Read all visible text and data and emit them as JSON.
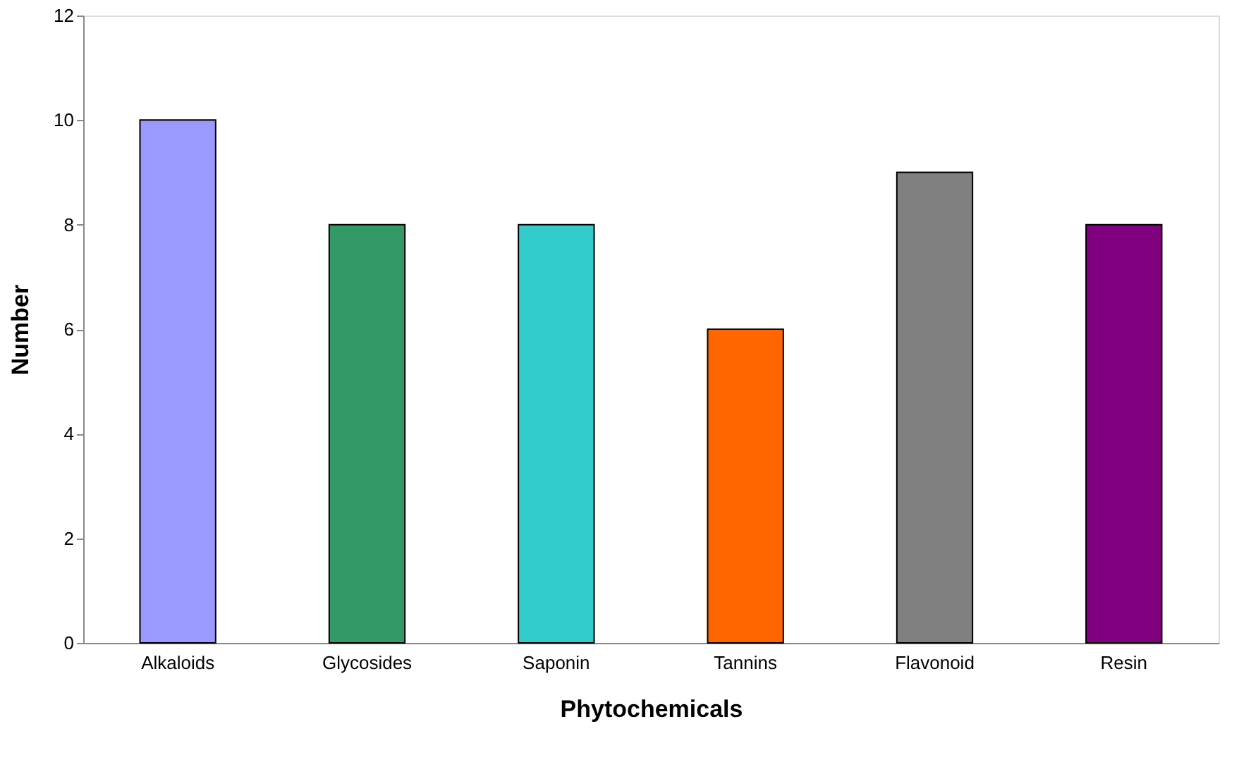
{
  "chart_data": {
    "type": "bar",
    "xlabel": "Phytochemicals",
    "ylabel": "Number",
    "categories": [
      "Alkaloids",
      "Glycosides",
      "Saponin",
      "Tannins",
      "Flavonoid",
      "Resin"
    ],
    "values": [
      10,
      8,
      8,
      6,
      9,
      8
    ],
    "colors": [
      "#9999ff",
      "#339966",
      "#33cccc",
      "#ff6600",
      "#808080",
      "#800080"
    ],
    "ylim": [
      0,
      12
    ],
    "yticks": [
      0,
      2,
      4,
      6,
      8,
      10,
      12
    ],
    "grid": false
  }
}
